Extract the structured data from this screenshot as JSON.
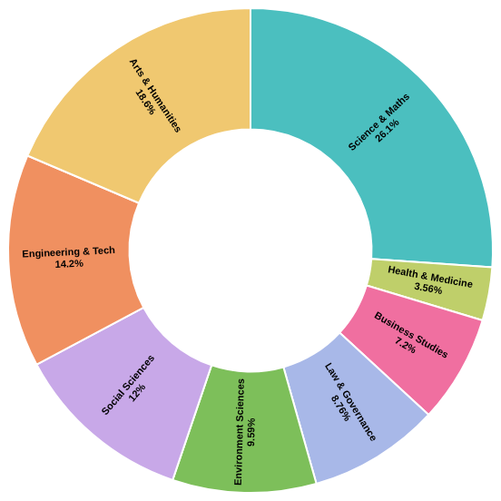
{
  "chart_data": {
    "type": "doughnut",
    "categories": [
      "Science & Maths",
      "Health & Medicine",
      "Business Studies",
      "Law & Governance",
      "Environment Sciences",
      "Social Sciences",
      "Engineering & Tech",
      "Arts & Humanities"
    ],
    "values": [
      26.1,
      3.56,
      7.2,
      8.76,
      9.59,
      12.0,
      14.2,
      18.6
    ],
    "value_labels": [
      "26.1%",
      "3.56%",
      "7.2%",
      "8.76%",
      "9.59%",
      "12%",
      "14.2%",
      "18.6%"
    ],
    "colors": [
      "#4BBFBF",
      "#BFCF6A",
      "#F06FA0",
      "#A8B8E8",
      "#7DBF5A",
      "#C8A8E8",
      "#F09060",
      "#F0C870"
    ],
    "data_labels": true,
    "legend": false
  }
}
